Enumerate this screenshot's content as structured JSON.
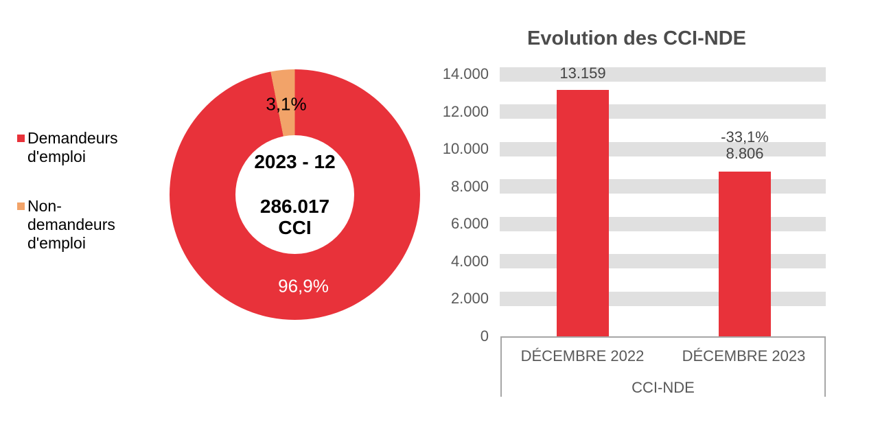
{
  "chart_data": [
    {
      "type": "pie",
      "donut": true,
      "labels": [
        "Demandeurs d'emploi",
        "Non-demandeurs d'emploi"
      ],
      "legend_labels": [
        "Demandeurs\nd'emploi",
        "Non-\ndemandeurs\nd'emploi"
      ],
      "values": [
        96.9,
        3.1
      ],
      "unit": "%",
      "pct_labels": [
        "96,9%",
        "3,1%"
      ],
      "colors": [
        "#E8323A",
        "#F2A369"
      ],
      "center": {
        "period": "2023 - 12",
        "value": "286.017\nCCI"
      },
      "legend_position": "left",
      "start_angle_deg": 0,
      "direction": "clockwise"
    },
    {
      "type": "bar",
      "title": "Evolution des CCI-NDE",
      "categories": [
        "DÉCEMBRE 2022",
        "DÉCEMBRE 2023"
      ],
      "values": [
        13159,
        8806
      ],
      "bar_labels": [
        "13.159",
        "8.806"
      ],
      "annotation": "-33,1%",
      "annotation_on_index": 1,
      "axis_group_label": "CCI-NDE",
      "y_ticks": [
        14000,
        12000,
        10000,
        8000,
        6000,
        4000,
        2000,
        0
      ],
      "y_tick_labels": [
        "14.000",
        "12.000",
        "10.000",
        "8.000",
        "6.000",
        "4.000",
        "2.000",
        "0"
      ],
      "ylim": [
        0,
        14000
      ],
      "bar_color": "#E8323A",
      "gridband_color": "#E0E0E0",
      "axis_box_border_color": "#A6A6A6",
      "legend": "none",
      "grid": "horizontal-bands"
    }
  ]
}
